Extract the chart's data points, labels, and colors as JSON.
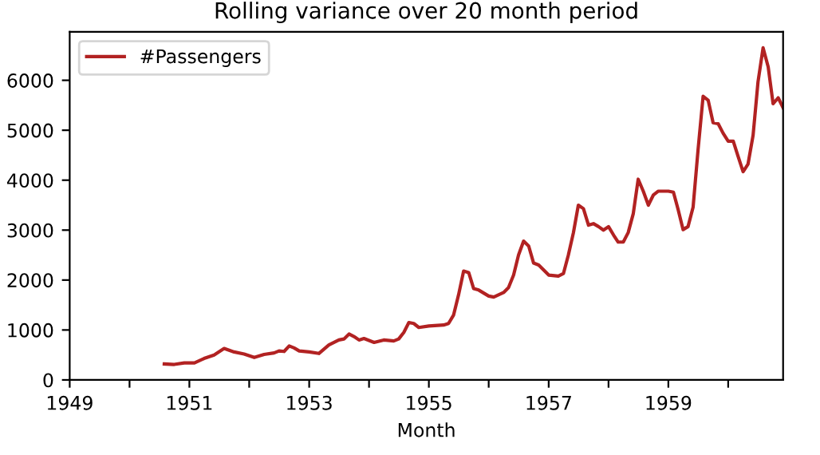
{
  "chart_data": {
    "type": "line",
    "title": "Rolling variance over 20 month period",
    "xlabel": "Month",
    "x": [
      "1950-08",
      "1950-10",
      "1950-12",
      "1951-02",
      "1951-04",
      "1951-06",
      "1951-08",
      "1951-10",
      "1951-12",
      "1952-02",
      "1952-04",
      "1952-06",
      "1952-07",
      "1952-08",
      "1952-09",
      "1952-10",
      "1952-11",
      "1953-01",
      "1953-03",
      "1953-05",
      "1953-07",
      "1953-08",
      "1953-09",
      "1953-10",
      "1953-11",
      "1953-12",
      "1954-02",
      "1954-04",
      "1954-06",
      "1954-07",
      "1954-08",
      "1954-09",
      "1954-10",
      "1954-11",
      "1955-01",
      "1955-04",
      "1955-05",
      "1955-06",
      "1955-07",
      "1955-08",
      "1955-09",
      "1955-10",
      "1955-11",
      "1956-01",
      "1956-02",
      "1956-04",
      "1956-05",
      "1956-06",
      "1956-07",
      "1956-08",
      "1956-09",
      "1956-10",
      "1956-11",
      "1957-01",
      "1957-03",
      "1957-04",
      "1957-05",
      "1957-06",
      "1957-07",
      "1957-08",
      "1957-09",
      "1957-10",
      "1957-11",
      "1957-12",
      "1958-01",
      "1958-02",
      "1958-03",
      "1958-04",
      "1958-05",
      "1958-06",
      "1958-07",
      "1958-08",
      "1958-09",
      "1958-10",
      "1958-11",
      "1959-01",
      "1959-02",
      "1959-03",
      "1959-04",
      "1959-05",
      "1959-06",
      "1959-07",
      "1959-08",
      "1959-09",
      "1959-10",
      "1959-11",
      "1959-12",
      "1960-01",
      "1960-02",
      "1960-03",
      "1960-04",
      "1960-05",
      "1960-06",
      "1960-07",
      "1960-08",
      "1960-09",
      "1960-10",
      "1960-11",
      "1960-12"
    ],
    "series": [
      {
        "name": "#Passengers",
        "color": "#b22222",
        "values": [
          320,
          310,
          340,
          340,
          430,
          500,
          630,
          560,
          520,
          450,
          510,
          540,
          580,
          570,
          680,
          640,
          580,
          560,
          530,
          700,
          800,
          820,
          920,
          870,
          800,
          830,
          750,
          800,
          780,
          820,
          950,
          1150,
          1130,
          1050,
          1080,
          1100,
          1130,
          1300,
          1700,
          2180,
          2150,
          1830,
          1800,
          1680,
          1660,
          1750,
          1850,
          2100,
          2500,
          2780,
          2680,
          2340,
          2300,
          2100,
          2080,
          2130,
          2500,
          2950,
          3500,
          3430,
          3100,
          3130,
          3070,
          3000,
          3070,
          2900,
          2760,
          2760,
          2950,
          3330,
          4020,
          3780,
          3500,
          3700,
          3780,
          3780,
          3760,
          3420,
          3010,
          3070,
          3460,
          4600,
          5680,
          5600,
          5150,
          5130,
          4940,
          4780,
          4780,
          4480,
          4170,
          4320,
          4900,
          5970,
          6650,
          6270,
          5530,
          5650,
          5450
        ]
      }
    ],
    "xlim": [
      "1949-01",
      "1960-12"
    ],
    "xticks": [
      {
        "value": "1949-01",
        "label": "1949"
      },
      {
        "value": "1950-01",
        "label": null
      },
      {
        "value": "1951-01",
        "label": "1951"
      },
      {
        "value": "1952-01",
        "label": null
      },
      {
        "value": "1953-01",
        "label": "1953"
      },
      {
        "value": "1954-01",
        "label": null
      },
      {
        "value": "1955-01",
        "label": "1955"
      },
      {
        "value": "1956-01",
        "label": null
      },
      {
        "value": "1957-01",
        "label": "1957"
      },
      {
        "value": "1958-01",
        "label": null
      },
      {
        "value": "1959-01",
        "label": "1959"
      },
      {
        "value": "1960-01",
        "label": null
      }
    ],
    "ylim": [
      0,
      6970
    ],
    "yticks": [
      0,
      1000,
      2000,
      3000,
      4000,
      5000,
      6000
    ],
    "legend": "top left",
    "grid": false,
    "marker": "none",
    "line_style": "solid"
  }
}
